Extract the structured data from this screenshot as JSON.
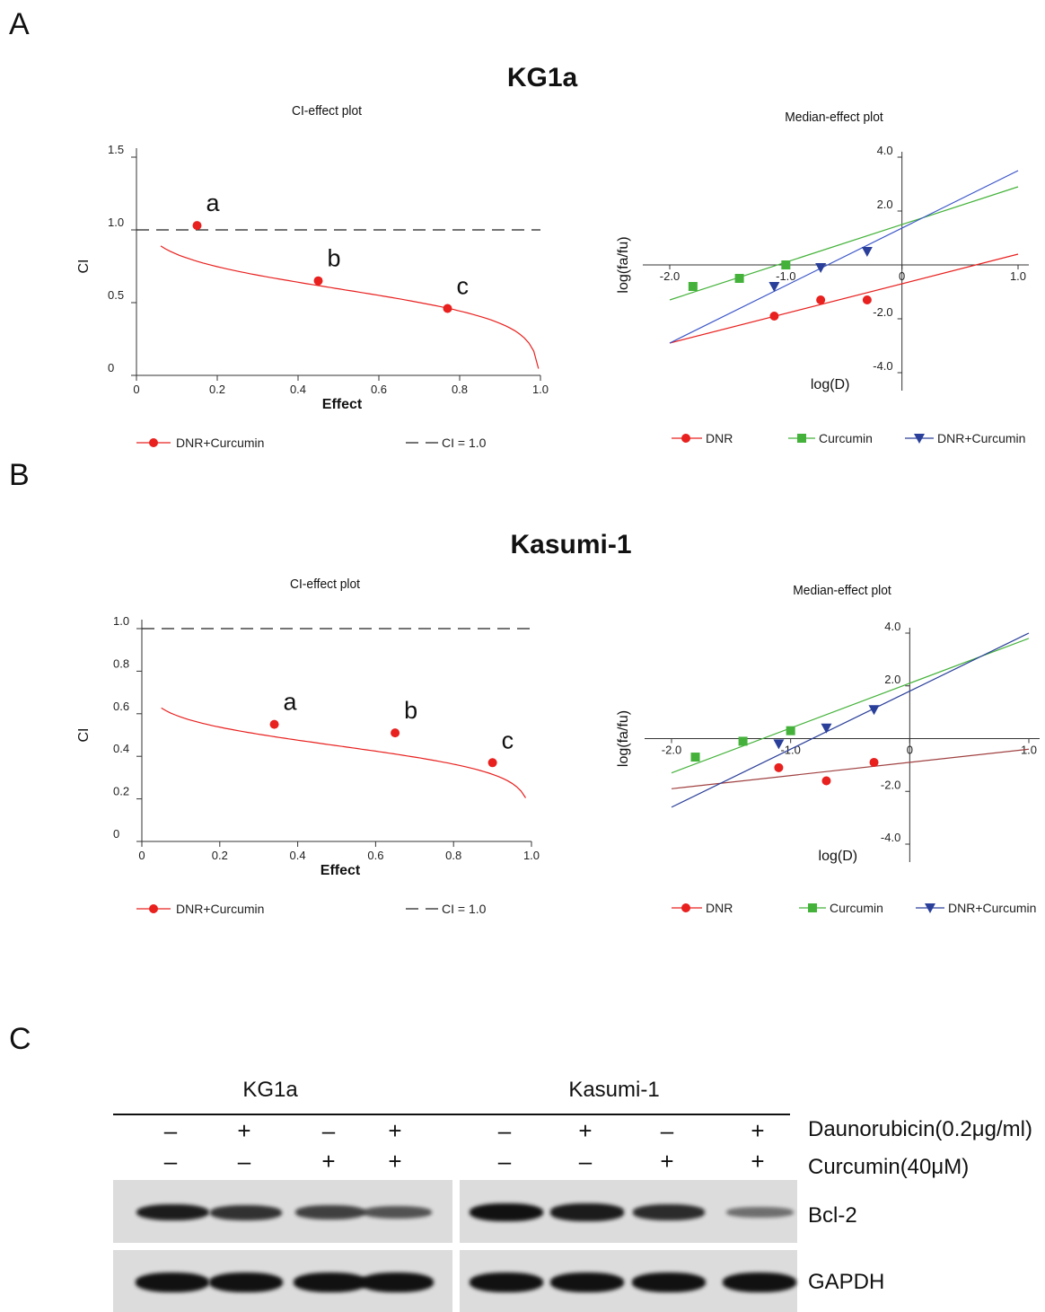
{
  "panels": {
    "A": {
      "letter": "A",
      "cell_line": "KG1a"
    },
    "B": {
      "letter": "B",
      "cell_line": "Kasumi-1"
    },
    "C": {
      "letter": "C"
    }
  },
  "colors": {
    "dnr": "#e8201e",
    "curcumin": "#44b23a",
    "combo": "#2a3f9a",
    "combo_line_kg1a": "#3a55c8",
    "dnr_line_kasumi": "#a04040",
    "ref": "#222222"
  },
  "chart_data": [
    {
      "panel": "A",
      "type": "scatter",
      "title": "CI-effect plot",
      "xlabel": "Effect",
      "ylabel": "CI",
      "xlim": [
        0,
        1.0
      ],
      "ylim": [
        0,
        1.5
      ],
      "xticks": [
        "0",
        "0.2",
        "0.4",
        "0.6",
        "0.8",
        "1.0"
      ],
      "yticks": [
        "0",
        "0.5",
        "1.0",
        "1.5"
      ],
      "series": [
        {
          "name": "DNR+Curcumin",
          "points": [
            {
              "label": "a",
              "x": 0.15,
              "y": 1.03
            },
            {
              "label": "b",
              "x": 0.45,
              "y": 0.65
            },
            {
              "label": "c",
              "x": 0.77,
              "y": 0.46
            }
          ]
        },
        {
          "name": "CI = 1.0",
          "y": 1.0
        }
      ],
      "legend": [
        "DNR+Curcumin",
        "CI = 1.0"
      ]
    },
    {
      "panel": "A",
      "type": "scatter",
      "title": "Median-effect plot",
      "xlabel": "log(D)",
      "ylabel": "log(fa/fu)",
      "xlim": [
        -2.0,
        1.0
      ],
      "ylim": [
        -4.0,
        4.0
      ],
      "xticks": [
        "-2.0",
        "-1.0",
        "0",
        "1.0"
      ],
      "yticks": [
        "4.0",
        "2.0",
        "-2.0",
        "-4.0"
      ],
      "series": [
        {
          "name": "DNR",
          "x": [
            -1.1,
            -0.7,
            -0.3
          ],
          "y": [
            -1.9,
            -1.3,
            -1.3
          ]
        },
        {
          "name": "Curcumin",
          "x": [
            -1.8,
            -1.4,
            -1.0
          ],
          "y": [
            -0.8,
            -0.5,
            0.0
          ]
        },
        {
          "name": "DNR+Curcumin",
          "x": [
            -1.1,
            -0.7,
            -0.3
          ],
          "y": [
            -0.8,
            -0.1,
            0.5
          ]
        }
      ],
      "legend": [
        "DNR",
        "Curcumin",
        "DNR+Curcumin"
      ]
    },
    {
      "panel": "B",
      "type": "scatter",
      "title": "CI-effect plot",
      "xlabel": "Effect",
      "ylabel": "CI",
      "xlim": [
        0,
        1.0
      ],
      "ylim": [
        0,
        1.0
      ],
      "xticks": [
        "0",
        "0.2",
        "0.4",
        "0.6",
        "0.8",
        "1.0"
      ],
      "yticks": [
        "0",
        "0.2",
        "0.4",
        "0.6",
        "0.8",
        "1.0"
      ],
      "series": [
        {
          "name": "DNR+Curcumin",
          "points": [
            {
              "label": "a",
              "x": 0.34,
              "y": 0.55
            },
            {
              "label": "b",
              "x": 0.65,
              "y": 0.51
            },
            {
              "label": "c",
              "x": 0.9,
              "y": 0.37
            }
          ]
        },
        {
          "name": "CI = 1.0",
          "y": 1.0
        }
      ],
      "legend": [
        "DNR+Curcumin",
        "CI = 1.0"
      ]
    },
    {
      "panel": "B",
      "type": "scatter",
      "title": "Median-effect plot",
      "xlabel": "log(D)",
      "ylabel": "log(fa/fu)",
      "xlim": [
        -2.0,
        1.0
      ],
      "ylim": [
        -4.0,
        4.0
      ],
      "xticks": [
        "-2.0",
        "-1.0",
        "0",
        "1.0"
      ],
      "yticks": [
        "4.0",
        "2.0",
        "-2.0",
        "-4.0"
      ],
      "series": [
        {
          "name": "DNR",
          "x": [
            -1.1,
            -0.7,
            -0.3
          ],
          "y": [
            -1.1,
            -1.6,
            -0.9
          ]
        },
        {
          "name": "Curcumin",
          "x": [
            -1.8,
            -1.4,
            -1.0
          ],
          "y": [
            -0.7,
            -0.1,
            0.3
          ]
        },
        {
          "name": "DNR+Curcumin",
          "x": [
            -1.1,
            -0.7,
            -0.3
          ],
          "y": [
            -0.2,
            0.4,
            1.1
          ]
        }
      ],
      "legend": [
        "DNR",
        "Curcumin",
        "DNR+Curcumin"
      ]
    }
  ],
  "western_blot": {
    "groups": [
      "KG1a",
      "Kasumi-1"
    ],
    "treatments": [
      {
        "label": "Daunorubicin(0.2μg/ml)",
        "signs": [
          "–",
          "+",
          "–",
          "+",
          "–",
          "+",
          "–",
          "+"
        ]
      },
      {
        "label": "Curcumin(40μM)",
        "signs": [
          "–",
          "–",
          "+",
          "+",
          "–",
          "–",
          "+",
          "+"
        ]
      }
    ],
    "bands": [
      {
        "label": "Bcl-2",
        "intensity": [
          0.9,
          0.75,
          0.65,
          0.5,
          1.0,
          0.92,
          0.8,
          0.3
        ]
      },
      {
        "label": "GAPDH",
        "intensity": [
          1.0,
          1.0,
          1.0,
          1.0,
          1.0,
          1.0,
          1.0,
          1.0
        ]
      }
    ]
  }
}
